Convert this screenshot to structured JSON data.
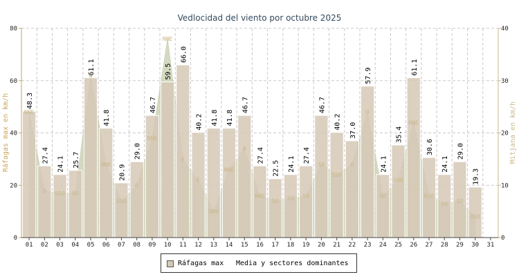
{
  "colors": {
    "bar_fill": "#d6c8b6",
    "bar_stroke": "#ffffff",
    "area_fill": "#c9d1b3",
    "grid": "#c8c8c8",
    "left_axis": "#c9a45a",
    "right_axis": "#c9b98a",
    "sector_text": "#c8b68a"
  },
  "legend": {
    "series1": "Ráfagas max",
    "series2": "Media y sectores dominantes"
  },
  "chart_data": {
    "type": "bar",
    "title": "Vedlocidad del viento por octubre 2025",
    "ylabel_left": "Ráfagas max en km/h",
    "ylabel_right": "Mitjana en km/h",
    "ylim_left": [
      0,
      80
    ],
    "ylim_right": [
      0,
      40
    ],
    "yticks_left": [
      "0",
      "20",
      "40",
      "60",
      "80"
    ],
    "yticks_right": [
      "0",
      "10",
      "20",
      "30",
      "40"
    ],
    "grid": true,
    "legend_position": "bottom-center",
    "categories": [
      "01",
      "02",
      "03",
      "04",
      "05",
      "06",
      "07",
      "08",
      "09",
      "10",
      "11",
      "12",
      "13",
      "14",
      "15",
      "16",
      "17",
      "18",
      "19",
      "20",
      "21",
      "22",
      "23",
      "24",
      "25",
      "26",
      "27",
      "28",
      "29",
      "30",
      "31"
    ],
    "series": [
      {
        "name": "Ráfagas max",
        "type": "bar",
        "axis": "left",
        "values": [
          48.3,
          27.4,
          24.1,
          25.7,
          61.1,
          41.8,
          20.9,
          29.0,
          46.7,
          59.5,
          66.0,
          40.2,
          41.8,
          41.8,
          46.7,
          27.4,
          22.5,
          24.1,
          27.4,
          46.7,
          40.2,
          37.0,
          57.9,
          24.1,
          35.4,
          61.1,
          30.6,
          24.1,
          29.0,
          19.3,
          null
        ],
        "labels": [
          "48.3",
          "27.4",
          "24.1",
          "25.7",
          "61.1",
          "41.8",
          "20.9",
          "29.0",
          "46.7",
          "59.5",
          "66.0",
          "40.2",
          "41.8",
          "41.8",
          "46.7",
          "27.4",
          "22.5",
          "24.1",
          "27.4",
          "46.7",
          "40.2",
          "37.0",
          "57.9",
          "24.1",
          "35.4",
          "61.1",
          "30.6",
          "24.1",
          "29.0",
          "19.3",
          ""
        ]
      },
      {
        "name": "Media y sectores dominantes",
        "type": "area",
        "axis": "right",
        "values": [
          24,
          9,
          8.5,
          8.5,
          31,
          14,
          7,
          10,
          19,
          38,
          15,
          11,
          5,
          13,
          17,
          8,
          7,
          7.5,
          8,
          14,
          12,
          14,
          24,
          8,
          11,
          22,
          8,
          6.5,
          7,
          4,
          null
        ],
        "sectors": [
          "NNE",
          "O",
          "SSO",
          "SO",
          "N",
          "NNE",
          "SSO",
          "O",
          "NNE",
          "NNE",
          "E",
          "E",
          "ONO",
          "NNE",
          "N",
          "NNE",
          "SO",
          "SO",
          "SO",
          "SO",
          "SSO",
          "O",
          "O",
          "SO",
          "OSO",
          "NNE",
          "OSO",
          "SO",
          "SO",
          "OSO",
          ""
        ]
      }
    ]
  }
}
